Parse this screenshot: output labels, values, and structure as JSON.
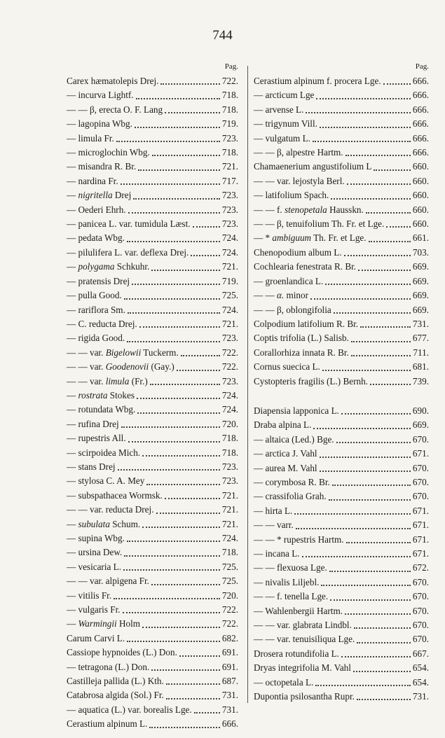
{
  "page_number": "744",
  "columns": [
    {
      "header": "Pag.",
      "blocks": [
        {
          "entries": [
            {
              "name": [
                "Carex hæmatolepis Drej."
              ],
              "page": "722."
            },
            {
              "name": [
                "— incurva Lightf."
              ],
              "page": "718."
            },
            {
              "name": [
                "— — β, erecta O. F. Lang"
              ],
              "page": "718."
            },
            {
              "name": [
                "— lagopina Wbg."
              ],
              "page": "719."
            },
            {
              "name": [
                "— limula Fr."
              ],
              "page": "723."
            },
            {
              "name": [
                "— microglochin Wbg."
              ],
              "page": "718."
            },
            {
              "name": [
                "— misandra R. Br."
              ],
              "page": "721."
            },
            {
              "name": [
                "— nardina Fr."
              ],
              "page": "717."
            },
            {
              "name": [
                "— ",
                "nigritella",
                " Drej"
              ],
              "page": "723."
            },
            {
              "name": [
                "— Oederi Ehrh."
              ],
              "page": "723."
            },
            {
              "name": [
                "— panicea L. var. tumidula Læst."
              ],
              "page": "723."
            },
            {
              "name": [
                "— pedata Wbg."
              ],
              "page": "724."
            },
            {
              "name": [
                "— pilulifera L. var. deflexa Drej."
              ],
              "page": "724."
            },
            {
              "name": [
                "— ",
                "polygama",
                " Schkuhr."
              ],
              "page": "721."
            },
            {
              "name": [
                "— pratensis Drej"
              ],
              "page": "719."
            },
            {
              "name": [
                "— pulla Good."
              ],
              "page": "725."
            },
            {
              "name": [
                "— rariflora Sm."
              ],
              "page": "724."
            },
            {
              "name": [
                "— C. reducta Drej."
              ],
              "page": "721."
            },
            {
              "name": [
                "— rigida Good."
              ],
              "page": "723."
            },
            {
              "name": [
                "— — var. ",
                "Bigelowii",
                " Tuckerm."
              ],
              "page": "722."
            },
            {
              "name": [
                "— — var. ",
                "Goodenovii",
                " (Gay.)"
              ],
              "page": "722."
            },
            {
              "name": [
                "— — var. ",
                "limula",
                " (Fr.)"
              ],
              "page": "723."
            },
            {
              "name": [
                "— ",
                "rostrata",
                " Stokes"
              ],
              "page": "724."
            },
            {
              "name": [
                "— rotundata Wbg."
              ],
              "page": "724."
            },
            {
              "name": [
                "— rufina Drej"
              ],
              "page": "720."
            },
            {
              "name": [
                "— rupestris All."
              ],
              "page": "718."
            },
            {
              "name": [
                "— scirpoidea Mich."
              ],
              "page": "718."
            },
            {
              "name": [
                "— stans Drej"
              ],
              "page": "723."
            },
            {
              "name": [
                "— stylosa C. A. Mey"
              ],
              "page": "723."
            },
            {
              "name": [
                "— subspathacea Wormsk."
              ],
              "page": "721."
            },
            {
              "name": [
                "— — var. reducta Drej."
              ],
              "page": "721."
            },
            {
              "name": [
                "— ",
                "subulata",
                " Schum."
              ],
              "page": "721."
            },
            {
              "name": [
                "— supina Wbg."
              ],
              "page": "724."
            },
            {
              "name": [
                "— ursina Dew."
              ],
              "page": "718."
            },
            {
              "name": [
                "— vesicaria L."
              ],
              "page": "725."
            },
            {
              "name": [
                "— — var. alpigena Fr."
              ],
              "page": "725."
            },
            {
              "name": [
                "— vitilis Fr."
              ],
              "page": "720."
            },
            {
              "name": [
                "— vulgaris Fr."
              ],
              "page": "722."
            },
            {
              "name": [
                "— ",
                "Warmingii",
                " Holm"
              ],
              "page": "722."
            },
            {
              "name": [
                "Carum Carvi L."
              ],
              "page": "682."
            },
            {
              "name": [
                "Cassiope hypnoides (L.) Don."
              ],
              "page": "691."
            },
            {
              "name": [
                "— tetragona (L.) Don."
              ],
              "page": "691."
            },
            {
              "name": [
                "Castilleja pallida (L.) Kth."
              ],
              "page": "687."
            },
            {
              "name": [
                "Catabrosa algida (Sol.) Fr."
              ],
              "page": "731."
            },
            {
              "name": [
                "— aquatica (L.) var. borealis Lge."
              ],
              "page": "731."
            },
            {
              "name": [
                "Cerastium alpinum L."
              ],
              "page": "666."
            }
          ]
        }
      ]
    },
    {
      "header": "Pag.",
      "blocks": [
        {
          "entries": [
            {
              "name": [
                "Cerastium alpinum f. procera Lge."
              ],
              "page": "666."
            },
            {
              "name": [
                "— arcticum Lge"
              ],
              "page": "666."
            },
            {
              "name": [
                "— arvense L."
              ],
              "page": "666."
            },
            {
              "name": [
                "— trigynum Vill."
              ],
              "page": "666."
            },
            {
              "name": [
                "— vulgatum L."
              ],
              "page": "666."
            },
            {
              "name": [
                "— — β, alpestre Hartm."
              ],
              "page": "666."
            },
            {
              "name": [
                "Chamaenerium angustifolium L"
              ],
              "page": "660."
            },
            {
              "name": [
                "— — var. lejostyla Berl."
              ],
              "page": "660."
            },
            {
              "name": [
                "— latifolium Spach."
              ],
              "page": "660."
            },
            {
              "name": [
                "— — f. ",
                "stenopetala",
                " Hausskn."
              ],
              "page": "660."
            },
            {
              "name": [
                "— — β, tenuifolium Th. Fr. et Lge."
              ],
              "page": "660."
            },
            {
              "name": [
                "— * ",
                "ambiguum",
                " Th. Fr. et Lge."
              ],
              "page": "661."
            },
            {
              "name": [
                "Chenopodium album L."
              ],
              "page": "703."
            },
            {
              "name": [
                "Cochlearia fenestrata R. Br."
              ],
              "page": "669."
            },
            {
              "name": [
                "— groenlandica L."
              ],
              "page": "669."
            },
            {
              "name": [
                "— — ",
                "α.",
                " minor"
              ],
              "page": "669."
            },
            {
              "name": [
                "— — β, oblongifolia"
              ],
              "page": "669."
            },
            {
              "name": [
                "Colpodium latifolium R. Br."
              ],
              "page": "731."
            },
            {
              "name": [
                "Coptis trifolia (L.) Salisb."
              ],
              "page": "677."
            },
            {
              "name": [
                "Corallorhiza innata R. Br."
              ],
              "page": "711."
            },
            {
              "name": [
                "Cornus suecica L."
              ],
              "page": "681."
            },
            {
              "name": [
                "Cystopteris fragilis (L.) Bernh."
              ],
              "page": "739."
            }
          ]
        },
        {
          "entries": [
            {
              "name": [
                "Diapensia lapponica L."
              ],
              "page": "690."
            },
            {
              "name": [
                "Draba alpina L."
              ],
              "page": "669."
            },
            {
              "name": [
                "— altaica (Led.) Bge."
              ],
              "page": "670."
            },
            {
              "name": [
                "— arctica J. Vahl"
              ],
              "page": "671."
            },
            {
              "name": [
                "— aurea M. Vahl"
              ],
              "page": "670."
            },
            {
              "name": [
                "— corymbosa R. Br."
              ],
              "page": "670."
            },
            {
              "name": [
                "— crassifolia Grah."
              ],
              "page": "670."
            },
            {
              "name": [
                "— hirta L."
              ],
              "page": "671."
            },
            {
              "name": [
                "— — varr."
              ],
              "page": "671."
            },
            {
              "name": [
                "— — * rupestris Hartm."
              ],
              "page": "671."
            },
            {
              "name": [
                "— incana L."
              ],
              "page": "671."
            },
            {
              "name": [
                "— — flexuosa Lge."
              ],
              "page": "672."
            },
            {
              "name": [
                "— nivalis Liljebl."
              ],
              "page": "670."
            },
            {
              "name": [
                "— — f. tenella Lge."
              ],
              "page": "670."
            },
            {
              "name": [
                "— Wahlenbergii Hartm."
              ],
              "page": "670."
            },
            {
              "name": [
                "— — var. glabrata Lindbl."
              ],
              "page": "670."
            },
            {
              "name": [
                "— — var. tenuisiliqua Lge."
              ],
              "page": "670."
            },
            {
              "name": [
                "Drosera rotundifolia L."
              ],
              "page": "667."
            },
            {
              "name": [
                "Dryas integrifolia M. Vahl"
              ],
              "page": "654."
            },
            {
              "name": [
                "— octopetala L."
              ],
              "page": "654."
            },
            {
              "name": [
                "Dupontia psilosantha Rupr."
              ],
              "page": "731."
            }
          ]
        }
      ]
    }
  ]
}
